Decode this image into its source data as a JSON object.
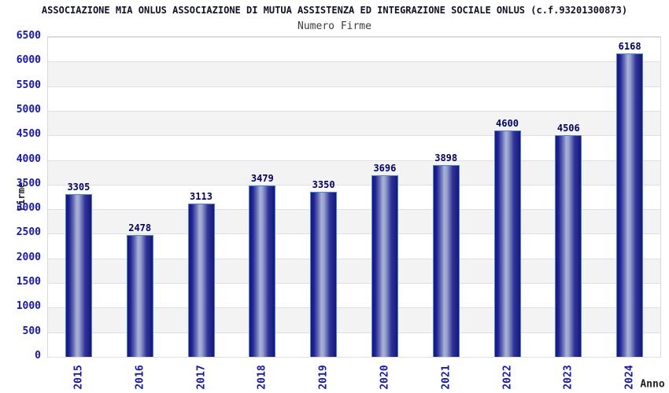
{
  "header": {
    "title": "ASSOCIAZIONE MIA ONLUS ASSOCIAZIONE DI MUTUA ASSISTENZA ED INTEGRAZIONE SOCIALE ONLUS (c.f.93201300873)",
    "subtitle": "Numero Firme"
  },
  "chart_data": {
    "type": "bar",
    "title": "Numero Firme",
    "categories": [
      "2015",
      "2016",
      "2017",
      "2018",
      "2019",
      "2020",
      "2021",
      "2022",
      "2023",
      "2024"
    ],
    "values": [
      3305,
      2478,
      3113,
      3479,
      3350,
      3696,
      3898,
      4600,
      4506,
      6168
    ],
    "xlabel": "Anno",
    "ylabel": "Firme",
    "ylim": [
      0,
      6500
    ],
    "y_ticks": [
      0,
      500,
      1000,
      1500,
      2000,
      2500,
      3000,
      3500,
      4000,
      4500,
      5000,
      5500,
      6000,
      6500
    ],
    "grid": true,
    "legend": "none",
    "bar_labels_visible": true,
    "background_bands": "alternating horizontal stripes per 500 units, white at top",
    "colors": {
      "axis_tick_label": "#1212D0",
      "bar_value_label": "#000070",
      "bar_edge": "#17177A",
      "bar_mid": "#2F339A",
      "bar_highlight": "#AAB2D8",
      "bar_border": "#4A86E0",
      "band": "#F3F3F3",
      "gridline": "#DFDFDF",
      "title": "#10102A",
      "subtitle": "#3C3C3C",
      "axis_title": "#222222"
    }
  }
}
